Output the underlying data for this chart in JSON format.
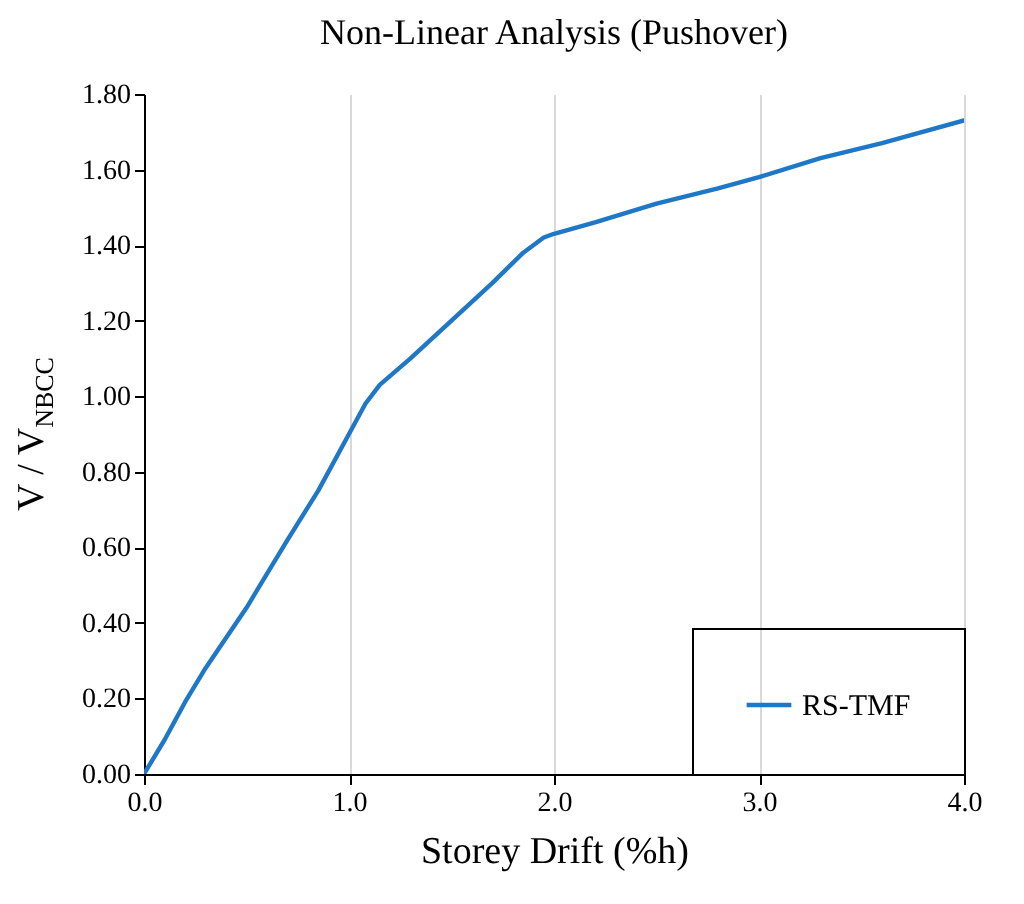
{
  "chart_data": {
    "type": "line",
    "title": "Non-Linear Analysis (Pushover)",
    "xlabel": "Storey Drift (%h)",
    "ylabel": "V / V$_{NBCC}$",
    "x": [
      0,
      0.1,
      0.2,
      0.3,
      0.5,
      0.7,
      0.85,
      1.0,
      1.08,
      1.15,
      1.3,
      1.5,
      1.7,
      1.85,
      1.95,
      2.0,
      2.2,
      2.5,
      2.8,
      3.0,
      3.3,
      3.6,
      4.0
    ],
    "series": [
      {
        "name": "RS-TMF",
        "color": "#1f77c8",
        "values": [
          0,
          0.09,
          0.19,
          0.28,
          0.44,
          0.62,
          0.75,
          0.9,
          0.98,
          1.03,
          1.1,
          1.2,
          1.3,
          1.38,
          1.42,
          1.43,
          1.46,
          1.51,
          1.55,
          1.58,
          1.63,
          1.67,
          1.73
        ]
      }
    ],
    "xlim": [
      0,
      4
    ],
    "ylim": [
      0,
      1.8
    ],
    "xticks": [
      {
        "value": 0,
        "label": "0.0"
      },
      {
        "value": 1,
        "label": "1.0"
      },
      {
        "value": 2,
        "label": "2.0"
      },
      {
        "value": 3,
        "label": "3.0"
      },
      {
        "value": 4,
        "label": "4.0"
      }
    ],
    "yticks": [
      {
        "value": 0,
        "label": "0.00"
      },
      {
        "value": 0.2,
        "label": "0.20"
      },
      {
        "value": 0.4,
        "label": "0.40"
      },
      {
        "value": 0.6,
        "label": "0.60"
      },
      {
        "value": 0.8,
        "label": "0.80"
      },
      {
        "value": 1,
        "label": "1.00"
      },
      {
        "value": 1.2,
        "label": "1.20"
      },
      {
        "value": 1.4,
        "label": "1.40"
      },
      {
        "value": 1.6,
        "label": "1.60"
      },
      {
        "value": 1.8,
        "label": "1.80"
      }
    ],
    "grid": "x",
    "legend": "bottom right",
    "line_style": "solid"
  }
}
